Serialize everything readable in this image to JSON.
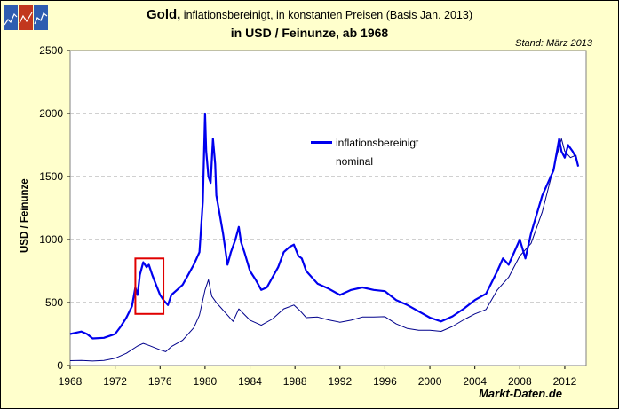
{
  "header": {
    "title_bold": "Gold,",
    "title_rest": " inflationsbereinigt, in konstanten Preisen (Basis Jan. 2013)",
    "subtitle": "in USD / Feinunze, ab 1968",
    "stand": "Stand: März 2013",
    "brand": "Markt-Daten.de"
  },
  "colors": {
    "background": "#ffffcc",
    "plot_bg": "#ffffff",
    "inflation_line": "#0000ee",
    "nominal_line": "#00008b",
    "highlight_box": "#e00000",
    "grid": "#a0a0a0"
  },
  "chart_data": {
    "type": "line",
    "title": "Gold, inflationsbereinigt, in konstanten Preisen (Basis Jan. 2013) in USD / Feinunze, ab 1968",
    "xlabel": "",
    "ylabel": "USD / Feinunze",
    "xlim": [
      1968,
      2013.9
    ],
    "ylim": [
      0,
      2500
    ],
    "xticks": [
      1968,
      1972,
      1976,
      1980,
      1984,
      1988,
      1992,
      1996,
      2000,
      2004,
      2008,
      2012
    ],
    "yticks": [
      0,
      500,
      1000,
      1500,
      2000,
      2500
    ],
    "grid": true,
    "legend_position": "center",
    "annotation": {
      "type": "highlight-box",
      "x_range": [
        1973.8,
        1976.3
      ],
      "y_range": [
        410,
        850
      ]
    },
    "series": [
      {
        "name": "inflationsbereinigt",
        "x": [
          1968,
          1969,
          1969.5,
          1970,
          1971,
          1972,
          1972.5,
          1973,
          1973.5,
          1973.8,
          1974,
          1974.2,
          1974.5,
          1974.8,
          1975,
          1975.3,
          1975.6,
          1976,
          1976.3,
          1976.7,
          1977,
          1977.5,
          1978,
          1978.5,
          1979,
          1979.5,
          1979.8,
          1980,
          1980.1,
          1980.3,
          1980.5,
          1980.7,
          1980.9,
          1981,
          1981.3,
          1981.6,
          1982,
          1982.3,
          1982.7,
          1983,
          1983.2,
          1983.5,
          1984,
          1984.5,
          1985,
          1985.5,
          1986,
          1986.5,
          1987,
          1987.5,
          1987.9,
          1988.3,
          1988.6,
          1989,
          1990,
          1991,
          1992,
          1993,
          1994,
          1995,
          1996,
          1997,
          1998,
          1999,
          2000,
          2001,
          2002,
          2003,
          2004,
          2005,
          2006,
          2006.5,
          2007,
          2008,
          2008.5,
          2009,
          2010,
          2011,
          2011.5,
          2011.7,
          2012,
          2012.3,
          2012.7,
          2013,
          2013.2
        ],
        "values": [
          250,
          270,
          250,
          215,
          220,
          250,
          310,
          380,
          470,
          620,
          560,
          720,
          820,
          780,
          800,
          720,
          650,
          560,
          520,
          480,
          560,
          600,
          640,
          720,
          800,
          900,
          1300,
          2000,
          1700,
          1500,
          1450,
          1800,
          1600,
          1350,
          1200,
          1050,
          800,
          900,
          1000,
          1100,
          980,
          900,
          750,
          680,
          600,
          620,
          700,
          780,
          900,
          940,
          960,
          870,
          850,
          750,
          650,
          610,
          560,
          600,
          620,
          600,
          590,
          520,
          480,
          430,
          380,
          350,
          390,
          450,
          520,
          570,
          750,
          850,
          800,
          1000,
          850,
          1050,
          1350,
          1550,
          1800,
          1700,
          1650,
          1750,
          1700,
          1650,
          1580
        ]
      },
      {
        "name": "nominal",
        "x": [
          1968,
          1969,
          1970,
          1971,
          1972,
          1973,
          1974,
          1974.5,
          1975,
          1976,
          1976.5,
          1977,
          1978,
          1979,
          1979.5,
          1980,
          1980.3,
          1980.6,
          1981,
          1982,
          1982.5,
          1983,
          1984,
          1985,
          1986,
          1987,
          1987.9,
          1988.5,
          1989,
          1990,
          1991,
          1992,
          1993,
          1994,
          1995,
          1996,
          1997,
          1998,
          1999,
          2000,
          2001,
          2002,
          2003,
          2004,
          2005,
          2006,
          2007,
          2008,
          2009,
          2010,
          2011,
          2011.7,
          2012,
          2012.5,
          2013,
          2013.2
        ],
        "values": [
          39,
          41,
          36,
          41,
          58,
          97,
          155,
          175,
          160,
          125,
          110,
          150,
          200,
          300,
          400,
          600,
          680,
          550,
          500,
          400,
          350,
          450,
          360,
          320,
          370,
          450,
          480,
          430,
          380,
          385,
          362,
          344,
          360,
          385,
          385,
          388,
          330,
          294,
          280,
          280,
          271,
          310,
          363,
          410,
          445,
          600,
          700,
          870,
          970,
          1220,
          1570,
          1800,
          1700,
          1650,
          1670,
          1580
        ]
      }
    ]
  }
}
